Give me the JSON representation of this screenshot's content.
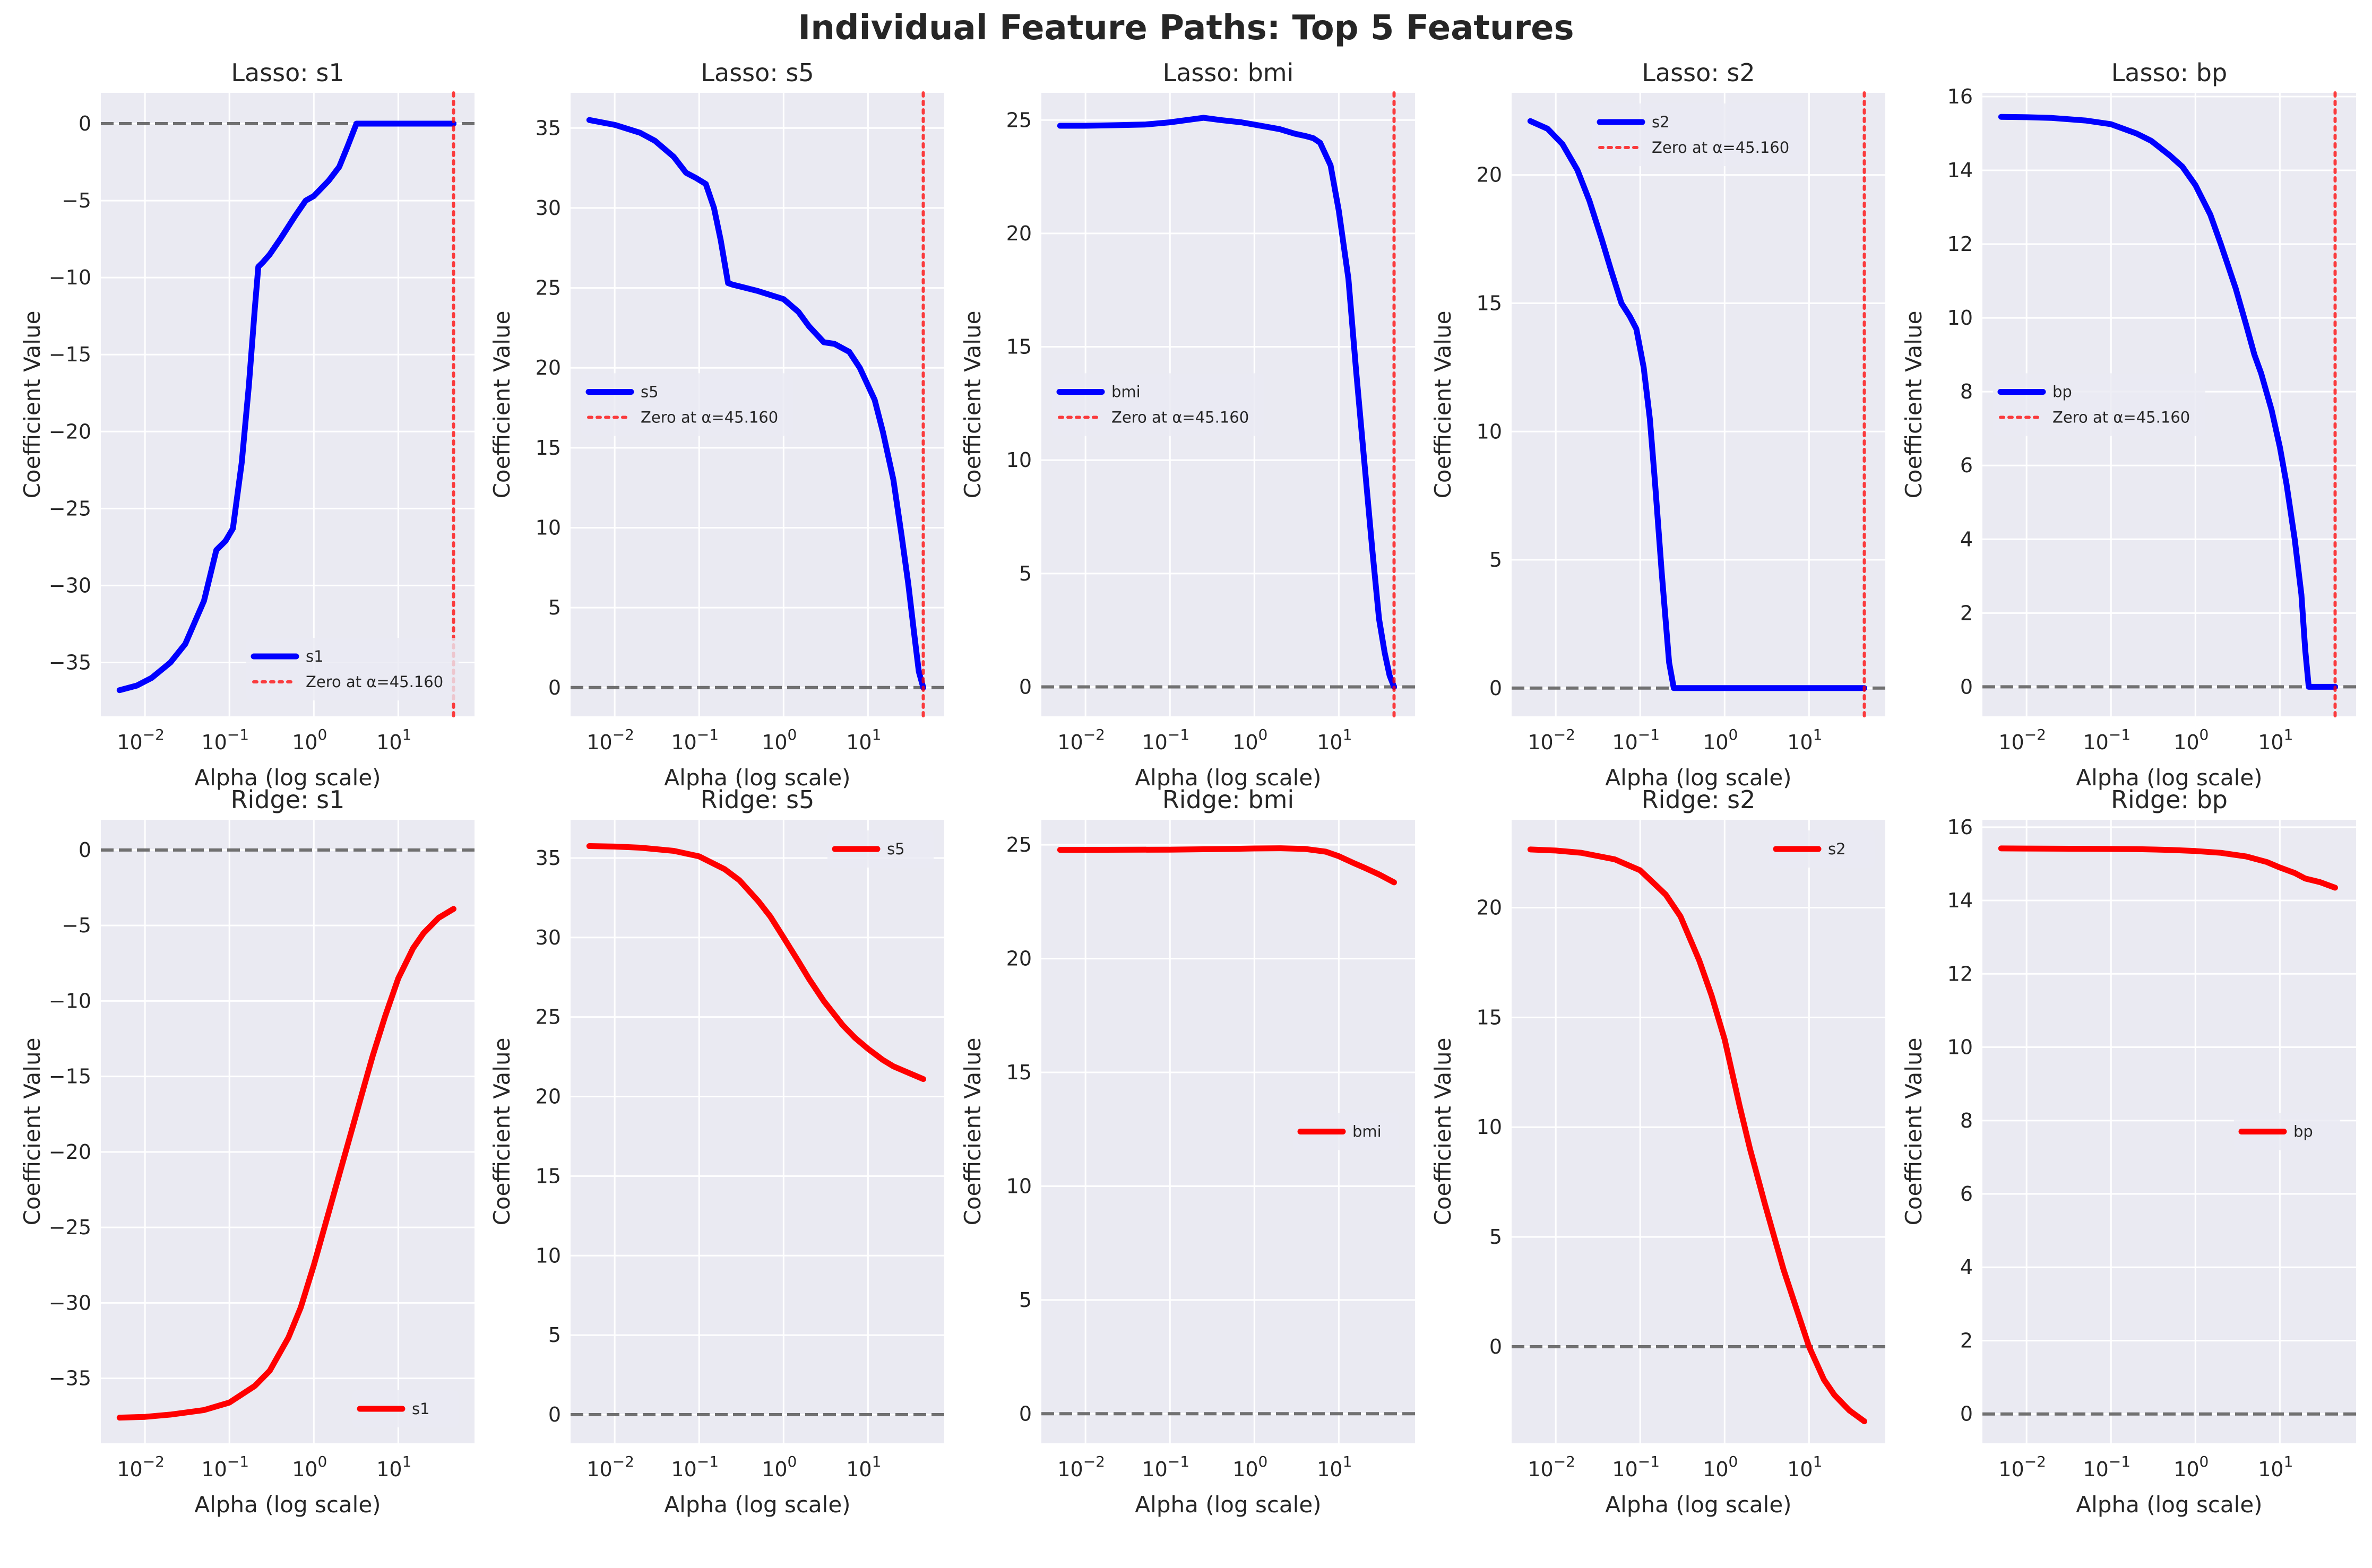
{
  "title": "Individual Feature Paths: Top 5 Features",
  "chart_data": [
    {
      "type": "line",
      "title": "Lasso: s1",
      "xlabel": "Alpha (log scale)",
      "ylabel": "Coefficient Value",
      "xscale": "log",
      "xlim": [
        0.003,
        80
      ],
      "ylim": [
        -38.5,
        2
      ],
      "yticks": [
        0,
        -5,
        -10,
        -15,
        -20,
        -25,
        -30,
        -35
      ],
      "xtick_labels": [
        "10^-2",
        "10^-1",
        "10^0",
        "10^1"
      ],
      "color": "#0000ff",
      "legend_loc": "lower-right",
      "series": [
        {
          "name": "s1",
          "x": [
            0.005,
            0.008,
            0.012,
            0.02,
            0.03,
            0.05,
            0.07,
            0.09,
            0.11,
            0.14,
            0.17,
            0.2,
            0.22,
            0.25,
            0.3,
            0.4,
            0.6,
            0.8,
            1.0,
            1.5,
            2.0,
            2.5,
            3.2,
            4,
            10,
            20,
            45.16
          ],
          "y": [
            -36.8,
            -36.5,
            -36,
            -35,
            -33.8,
            -31,
            -27.7,
            -27.1,
            -26.3,
            -22,
            -17,
            -12,
            -9.3,
            -9,
            -8.5,
            -7.5,
            -6,
            -5,
            -4.7,
            -3.7,
            -2.8,
            -1.5,
            0,
            0,
            0,
            0,
            0
          ]
        },
        {
          "name": "Zero at α=45.160",
          "x": [
            45.16,
            45.16
          ],
          "y": [
            -38.5,
            2
          ],
          "style": "dotted-vertical"
        }
      ],
      "hline": 0
    },
    {
      "type": "line",
      "title": "Lasso: s5",
      "xlabel": "Alpha (log scale)",
      "ylabel": "Coefficient Value",
      "xscale": "log",
      "xlim": [
        0.003,
        80
      ],
      "ylim": [
        -1.8,
        37.2
      ],
      "yticks": [
        0,
        5,
        10,
        15,
        20,
        25,
        30,
        35
      ],
      "xtick_labels": [
        "10^-2",
        "10^-1",
        "10^0",
        "10^1"
      ],
      "color": "#0000ff",
      "legend_loc": "center-left",
      "series": [
        {
          "name": "s5",
          "x": [
            0.005,
            0.01,
            0.02,
            0.03,
            0.05,
            0.07,
            0.09,
            0.12,
            0.15,
            0.18,
            0.22,
            0.25,
            0.3,
            0.5,
            1.0,
            1.5,
            2.0,
            3.0,
            4.0,
            6.0,
            8.0,
            12.0,
            15.0,
            20.0,
            25.0,
            30.0,
            35.0,
            40.0,
            45.16
          ],
          "y": [
            35.5,
            35.2,
            34.7,
            34.2,
            33.2,
            32.2,
            31.9,
            31.5,
            30,
            28,
            25.3,
            25.2,
            25.1,
            24.8,
            24.3,
            23.5,
            22.6,
            21.6,
            21.5,
            21,
            20,
            18,
            16,
            13,
            9.5,
            6.5,
            3.5,
            1,
            0
          ]
        },
        {
          "name": "Zero at α=45.160",
          "x": [
            45.16,
            45.16
          ],
          "y": [
            -1.8,
            37.2
          ],
          "style": "dotted-vertical"
        }
      ],
      "hline": 0
    },
    {
      "type": "line",
      "title": "Lasso: bmi",
      "xlabel": "Alpha (log scale)",
      "ylabel": "Coefficient Value",
      "xscale": "log",
      "xlim": [
        0.003,
        80
      ],
      "ylim": [
        -1.3,
        26.2
      ],
      "yticks": [
        0,
        5,
        10,
        15,
        20,
        25
      ],
      "xtick_labels": [
        "10^-2",
        "10^-1",
        "10^0",
        "10^1"
      ],
      "color": "#0000ff",
      "legend_loc": "center-left",
      "series": [
        {
          "name": "bmi",
          "x": [
            0.005,
            0.01,
            0.02,
            0.05,
            0.1,
            0.2,
            0.25,
            0.4,
            0.7,
            1,
            2,
            3,
            4,
            5,
            6,
            8,
            10,
            13,
            16,
            20,
            25,
            30,
            35,
            40,
            45.16
          ],
          "y": [
            24.75,
            24.75,
            24.77,
            24.8,
            24.9,
            25.05,
            25.1,
            25,
            24.9,
            24.8,
            24.6,
            24.4,
            24.3,
            24.2,
            24,
            23,
            21,
            18,
            14,
            10,
            6,
            3,
            1.5,
            0.5,
            0
          ]
        },
        {
          "name": "Zero at α=45.160",
          "x": [
            45.16,
            45.16
          ],
          "y": [
            -1.3,
            26.2
          ],
          "style": "dotted-vertical"
        }
      ],
      "hline": 0
    },
    {
      "type": "line",
      "title": "Lasso: s2",
      "xlabel": "Alpha (log scale)",
      "ylabel": "Coefficient Value",
      "xscale": "log",
      "xlim": [
        0.003,
        80
      ],
      "ylim": [
        -1.1,
        23.2
      ],
      "yticks": [
        0,
        5,
        10,
        15,
        20
      ],
      "xtick_labels": [
        "10^-2",
        "10^-1",
        "10^0",
        "10^1"
      ],
      "color": "#0000ff",
      "legend_loc": "upper-center",
      "series": [
        {
          "name": "s2",
          "x": [
            0.005,
            0.008,
            0.012,
            0.018,
            0.025,
            0.035,
            0.045,
            0.06,
            0.075,
            0.09,
            0.11,
            0.13,
            0.15,
            0.18,
            0.22,
            0.25,
            0.3,
            1,
            10,
            45.16
          ],
          "y": [
            22.1,
            21.8,
            21.2,
            20.2,
            19,
            17.5,
            16.3,
            15,
            14.5,
            14,
            12.5,
            10.5,
            8,
            4.5,
            1,
            0,
            0,
            0,
            0,
            0
          ]
        },
        {
          "name": "Zero at α=45.160",
          "x": [
            45.16,
            45.16
          ],
          "y": [
            -1.1,
            23.2
          ],
          "style": "dotted-vertical"
        }
      ],
      "hline": 0
    },
    {
      "type": "line",
      "title": "Lasso: bp",
      "xlabel": "Alpha (log scale)",
      "ylabel": "Coefficient Value",
      "xscale": "log",
      "xlim": [
        0.003,
        80
      ],
      "ylim": [
        -0.8,
        16.1
      ],
      "yticks": [
        0,
        2,
        4,
        6,
        8,
        10,
        12,
        14,
        16
      ],
      "xtick_labels": [
        "10^-2",
        "10^-1",
        "10^0",
        "10^1"
      ],
      "color": "#0000ff",
      "legend_loc": "center-left",
      "series": [
        {
          "name": "bp",
          "x": [
            0.005,
            0.01,
            0.02,
            0.05,
            0.1,
            0.2,
            0.3,
            0.5,
            0.7,
            1,
            1.5,
            2,
            3,
            4,
            5,
            6,
            8,
            10,
            12,
            15,
            18,
            20,
            22,
            25,
            45.16
          ],
          "y": [
            15.45,
            15.44,
            15.42,
            15.35,
            15.25,
            15,
            14.8,
            14.4,
            14.1,
            13.6,
            12.8,
            12,
            10.8,
            9.8,
            9,
            8.5,
            7.5,
            6.5,
            5.5,
            4,
            2.5,
            1,
            0,
            0,
            0
          ]
        },
        {
          "name": "Zero at α=45.160",
          "x": [
            45.16,
            45.16
          ],
          "y": [
            -0.8,
            16.1
          ],
          "style": "dotted-vertical"
        }
      ],
      "hline": 0
    },
    {
      "type": "line",
      "title": "Ridge: s1",
      "xlabel": "Alpha (log scale)",
      "ylabel": "Coefficient Value",
      "xscale": "log",
      "xlim": [
        0.003,
        80
      ],
      "ylim": [
        -39.3,
        2
      ],
      "yticks": [
        0,
        -5,
        -10,
        -15,
        -20,
        -25,
        -30,
        -35
      ],
      "xtick_labels": [
        "10^-2",
        "10^-1",
        "10^0",
        "10^1"
      ],
      "color": "#ff0000",
      "legend_loc": "lower-right",
      "series": [
        {
          "name": "s1",
          "x": [
            0.005,
            0.01,
            0.02,
            0.05,
            0.1,
            0.2,
            0.3,
            0.5,
            0.7,
            1,
            1.5,
            2,
            3,
            4,
            5,
            7,
            10,
            15,
            20,
            30,
            45.16
          ],
          "y": [
            -37.6,
            -37.55,
            -37.4,
            -37.1,
            -36.6,
            -35.5,
            -34.5,
            -32.3,
            -30.3,
            -27.5,
            -24,
            -21.5,
            -18,
            -15.5,
            -13.6,
            -11,
            -8.5,
            -6.5,
            -5.5,
            -4.5,
            -3.9
          ]
        }
      ],
      "hline": 0
    },
    {
      "type": "line",
      "title": "Ridge: s5",
      "xlabel": "Alpha (log scale)",
      "ylabel": "Coefficient Value",
      "xscale": "log",
      "xlim": [
        0.003,
        80
      ],
      "ylim": [
        -1.8,
        37.4
      ],
      "yticks": [
        0,
        5,
        10,
        15,
        20,
        25,
        30,
        35
      ],
      "xtick_labels": [
        "10^-2",
        "10^-1",
        "10^0",
        "10^1"
      ],
      "color": "#ff0000",
      "legend_loc": "upper-right",
      "series": [
        {
          "name": "s5",
          "x": [
            0.005,
            0.01,
            0.02,
            0.05,
            0.1,
            0.2,
            0.3,
            0.5,
            0.7,
            1,
            1.5,
            2,
            3,
            5,
            7,
            10,
            15,
            20,
            30,
            45.16
          ],
          "y": [
            35.75,
            35.72,
            35.65,
            35.45,
            35.1,
            34.3,
            33.6,
            32.3,
            31.3,
            30,
            28.5,
            27.4,
            26,
            24.5,
            23.7,
            23,
            22.3,
            21.9,
            21.5,
            21.1
          ]
        }
      ],
      "hline": 0
    },
    {
      "type": "line",
      "title": "Ridge: bmi",
      "xlabel": "Alpha (log scale)",
      "ylabel": "Coefficient Value",
      "xscale": "log",
      "xlim": [
        0.003,
        80
      ],
      "ylim": [
        -1.3,
        26.1
      ],
      "yticks": [
        0,
        5,
        10,
        15,
        20,
        25
      ],
      "xtick_labels": [
        "10^-2",
        "10^-1",
        "10^0",
        "10^1"
      ],
      "color": "#ff0000",
      "legend_loc": "center-right",
      "series": [
        {
          "name": "bmi",
          "x": [
            0.005,
            0.01,
            0.1,
            0.5,
            1,
            2,
            4,
            7,
            10,
            15,
            20,
            30,
            45.16
          ],
          "y": [
            24.78,
            24.78,
            24.79,
            24.82,
            24.84,
            24.85,
            24.82,
            24.7,
            24.5,
            24.2,
            24,
            23.7,
            23.35
          ]
        }
      ],
      "hline": 0
    },
    {
      "type": "line",
      "title": "Ridge: s2",
      "xlabel": "Alpha (log scale)",
      "ylabel": "Coefficient Value",
      "xscale": "log",
      "xlim": [
        0.003,
        80
      ],
      "ylim": [
        -4.4,
        24
      ],
      "yticks": [
        0,
        5,
        10,
        15,
        20
      ],
      "xtick_labels": [
        "10^-2",
        "10^-1",
        "10^0",
        "10^1"
      ],
      "color": "#ff0000",
      "legend_loc": "upper-right",
      "series": [
        {
          "name": "s2",
          "x": [
            0.005,
            0.01,
            0.02,
            0.05,
            0.1,
            0.2,
            0.3,
            0.5,
            0.7,
            1,
            1.5,
            2,
            3,
            4,
            5,
            7,
            10,
            15,
            20,
            30,
            45.16
          ],
          "y": [
            22.65,
            22.6,
            22.5,
            22.2,
            21.7,
            20.6,
            19.6,
            17.6,
            16,
            14,
            11,
            9,
            6.5,
            4.8,
            3.5,
            1.8,
            0,
            -1.5,
            -2.2,
            -2.9,
            -3.4
          ]
        }
      ],
      "hline": 0
    },
    {
      "type": "line",
      "title": "Ridge: bp",
      "xlabel": "Alpha (log scale)",
      "ylabel": "Coefficient Value",
      "xscale": "log",
      "xlim": [
        0.003,
        80
      ],
      "ylim": [
        -0.8,
        16.2
      ],
      "yticks": [
        0,
        2,
        4,
        6,
        8,
        10,
        12,
        14,
        16
      ],
      "xtick_labels": [
        "10^-2",
        "10^-1",
        "10^0",
        "10^1"
      ],
      "color": "#ff0000",
      "legend_loc": "center-right",
      "series": [
        {
          "name": "bp",
          "x": [
            0.005,
            0.05,
            0.2,
            0.5,
            1,
            2,
            4,
            7,
            10,
            15,
            20,
            30,
            45.16
          ],
          "y": [
            15.42,
            15.41,
            15.4,
            15.38,
            15.35,
            15.3,
            15.2,
            15.05,
            14.9,
            14.75,
            14.6,
            14.5,
            14.35
          ]
        }
      ],
      "hline": 0
    }
  ]
}
